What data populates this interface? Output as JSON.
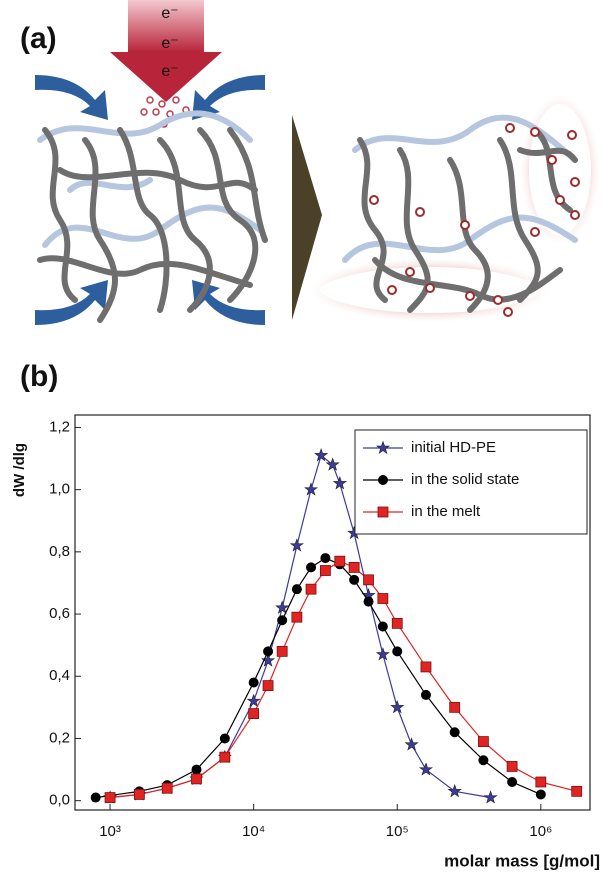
{
  "panels": [
    "(a)",
    "(b)"
  ],
  "diagram": {
    "beam_labels": [
      "e⁻",
      "e⁻",
      "e⁻"
    ]
  },
  "chart_data": {
    "type": "line",
    "x_label": "molar mass [g/mol]",
    "y_label": "dW /dlg",
    "log_x": true,
    "xlim": [
      570,
      2200000
    ],
    "xticks": [
      {
        "value": 1000,
        "label": "10³"
      },
      {
        "value": 10000,
        "label": "10⁴"
      },
      {
        "value": 100000,
        "label": "10⁵"
      },
      {
        "value": 1000000,
        "label": "10⁶"
      }
    ],
    "ylim": [
      -0.03,
      1.24
    ],
    "yticks": [
      {
        "value": 0,
        "label": "0,0"
      },
      {
        "value": 0.2,
        "label": "0,2"
      },
      {
        "value": 0.4,
        "label": "0,4"
      },
      {
        "value": 0.6,
        "label": "0,6"
      },
      {
        "value": 0.8,
        "label": "0,8"
      },
      {
        "value": 1.0,
        "label": "1,0"
      },
      {
        "value": 1.2,
        "label": "1,2"
      }
    ],
    "legend": "top-right",
    "series": [
      {
        "name": "initial HD-PE",
        "color": "#3b3b9c",
        "marker": "star",
        "x": [
          1000,
          1600,
          2500,
          4000,
          6300,
          10000,
          12600,
          15800,
          20000,
          25100,
          29500,
          35500,
          39800,
          50100,
          63100,
          79400,
          100000,
          125900,
          158500,
          251200,
          446700
        ],
        "values": [
          0.01,
          0.02,
          0.04,
          0.07,
          0.14,
          0.32,
          0.45,
          0.62,
          0.82,
          1.0,
          1.11,
          1.08,
          1.02,
          0.86,
          0.66,
          0.47,
          0.3,
          0.18,
          0.1,
          0.03,
          0.01
        ]
      },
      {
        "name": "in the solid state",
        "color": "#000000",
        "marker": "circle",
        "x": [
          794,
          1600,
          2500,
          4000,
          6300,
          10000,
          12600,
          15800,
          20000,
          25100,
          31600,
          39800,
          50100,
          63100,
          79400,
          100000,
          158500,
          251200,
          398100,
          631000,
          1000000
        ],
        "values": [
          0.01,
          0.03,
          0.05,
          0.1,
          0.2,
          0.38,
          0.48,
          0.58,
          0.68,
          0.75,
          0.78,
          0.76,
          0.71,
          0.64,
          0.56,
          0.48,
          0.34,
          0.22,
          0.13,
          0.06,
          0.02
        ]
      },
      {
        "name": "in the melt",
        "color": "#e02424",
        "marker": "square",
        "x": [
          1000,
          1600,
          2500,
          4000,
          6300,
          10000,
          12600,
          15800,
          20000,
          25100,
          31600,
          39800,
          50100,
          63100,
          79400,
          100000,
          158500,
          251200,
          398100,
          631000,
          1000000,
          1778000
        ],
        "values": [
          0.01,
          0.02,
          0.04,
          0.07,
          0.14,
          0.28,
          0.37,
          0.48,
          0.59,
          0.68,
          0.74,
          0.77,
          0.75,
          0.71,
          0.65,
          0.57,
          0.43,
          0.3,
          0.19,
          0.11,
          0.06,
          0.03
        ]
      }
    ]
  }
}
